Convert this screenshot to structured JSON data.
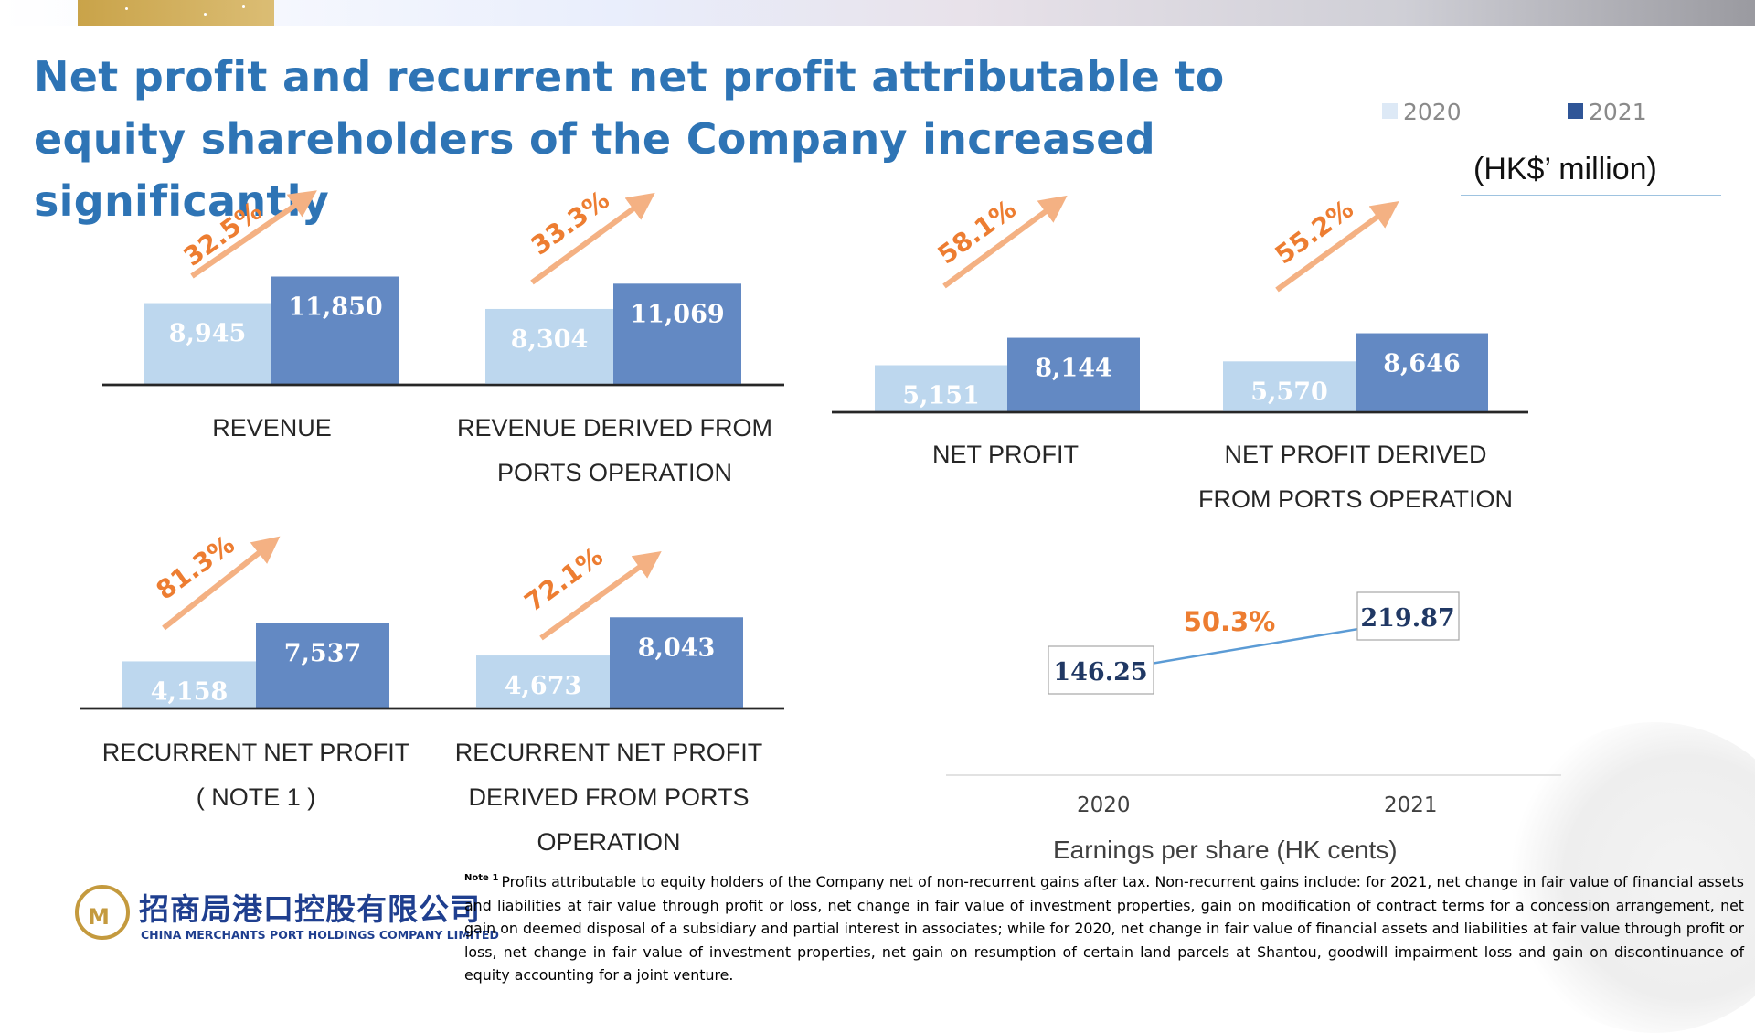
{
  "title": "Net profit and recurrent net profit attributable to equity shareholders of the Company increased significantly",
  "legend": [
    {
      "label": "2020",
      "color": "#bdd7ee"
    },
    {
      "label": "2021",
      "color": "#2f5597"
    }
  ],
  "unit": "(HK$’ million)",
  "colors": {
    "y2020": "#bdd7ee",
    "y2021": "#6389c3",
    "accent": "#ed7d31",
    "title": "#2e74b5"
  },
  "chart_data": [
    {
      "type": "bar",
      "title": "REVENUE",
      "categories": [
        "2020",
        "2021"
      ],
      "values": [
        8945,
        11850
      ],
      "value_labels": [
        "8,945",
        "11,850"
      ],
      "change": "32.5%"
    },
    {
      "type": "bar",
      "title": "REVENUE DERIVED FROM PORTS OPERATION",
      "categories": [
        "2020",
        "2021"
      ],
      "values": [
        8304,
        11069
      ],
      "value_labels": [
        "8,304",
        "11,069"
      ],
      "change": "33.3%"
    },
    {
      "type": "bar",
      "title": "NET PROFIT",
      "categories": [
        "2020",
        "2021"
      ],
      "values": [
        5151,
        8144
      ],
      "value_labels": [
        "5,151",
        "8,144"
      ],
      "change": "58.1%"
    },
    {
      "type": "bar",
      "title": "NET PROFIT DERIVED FROM PORTS OPERATION",
      "categories": [
        "2020",
        "2021"
      ],
      "values": [
        5570,
        8646
      ],
      "value_labels": [
        "5,570",
        "8,646"
      ],
      "change": "55.2%"
    },
    {
      "type": "bar",
      "title": "RECURRENT NET PROFIT ( NOTE 1 )",
      "categories": [
        "2020",
        "2021"
      ],
      "values": [
        4158,
        7537
      ],
      "value_labels": [
        "4,158",
        "7,537"
      ],
      "change": "81.3%"
    },
    {
      "type": "bar",
      "title": "RECURRENT NET PROFIT DERIVED FROM PORTS OPERATION",
      "categories": [
        "2020",
        "2021"
      ],
      "values": [
        4673,
        8043
      ],
      "value_labels": [
        "4,673",
        "8,043"
      ],
      "change": "72.1%"
    },
    {
      "type": "line",
      "title": "",
      "xlabel": "Earnings per share (HK cents)",
      "x": [
        "2020",
        "2021"
      ],
      "values": [
        146.25,
        219.87
      ],
      "value_labels": [
        "146.25",
        "219.87"
      ],
      "change": "50.3%"
    }
  ],
  "labels": {
    "revenue": [
      "REVENUE"
    ],
    "revenue_ports": [
      "REVENUE DERIVED FROM",
      "PORTS OPERATION"
    ],
    "net_profit": [
      "NET PROFIT"
    ],
    "net_profit_ports": [
      "NET PROFIT DERIVED",
      "FROM PORTS OPERATION"
    ],
    "recurrent": [
      "RECURRENT NET PROFIT",
      "( NOTE 1 )"
    ],
    "recurrent_ports": [
      "RECURRENT NET PROFIT",
      "DERIVED FROM PORTS",
      "OPERATION"
    ]
  },
  "eps": {
    "years": [
      "2020",
      "2021"
    ],
    "label": "Earnings per share (HK cents)"
  },
  "note": {
    "marker": "Note 1",
    "text": "Profits attributable to equity holders of the Company net of non-recurrent gains after tax. Non-recurrent gains include: for 2021, net change in fair value of financial assets and liabilities at fair value through profit or loss, net change in fair value of investment properties, gain on modification of contract terms for a concession arrangement, net gain on deemed disposal of a subsidiary and partial interest in associates; while for 2020, net change in fair value of financial assets and liabilities at fair value through profit or loss, net change in fair value of investment properties, net gain on resumption of certain land parcels at Shantou, goodwill impairment loss and gain on discontinuance of equity accounting for a joint venture."
  },
  "logo": {
    "cn": "招商局港口控股有限公司",
    "en": "CHINA MERCHANTS PORT HOLDINGS COMPANY LIMITED"
  }
}
